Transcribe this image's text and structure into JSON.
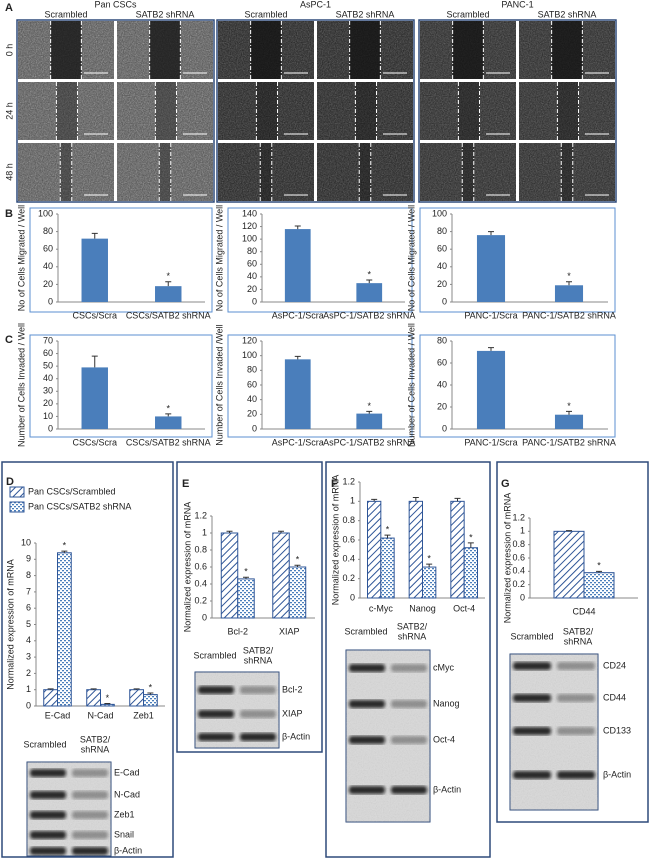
{
  "panel_labels": [
    "A",
    "B",
    "C",
    "D",
    "E",
    "F",
    "G"
  ],
  "panel_a": {
    "groups": [
      {
        "title": "Pan CSCs",
        "conditions": [
          "Scrambled",
          "SATB2 shRNA"
        ]
      },
      {
        "title": "AsPC-1",
        "conditions": [
          "Scrambled",
          "SATB2 shRNA"
        ]
      },
      {
        "title": "PANC-1",
        "conditions": [
          "Scrambled",
          "SATB2 shRNA"
        ]
      }
    ],
    "times": [
      "0 h",
      "24 h",
      "48 h"
    ]
  },
  "chart_data": [
    {
      "type": "bar",
      "ylabel": "No of Cells Migrated / Well",
      "categories": [
        "CSCs/Scra",
        "CSCs/SATB2 shRNA"
      ],
      "values": [
        72,
        18
      ],
      "errors": [
        6,
        5
      ],
      "color": "#4a7ebb",
      "ylim": [
        0,
        100
      ],
      "yticks": [
        0,
        20,
        40,
        60,
        80,
        100
      ],
      "annotations": [
        {
          "text": "*",
          "index": 1
        }
      ]
    },
    {
      "type": "bar",
      "ylabel": "No of Cells Migrated / Well",
      "categories": [
        "AsPC-1/Scra",
        "AsPC-1/SATB2 shRNA"
      ],
      "values": [
        116,
        30
      ],
      "errors": [
        5,
        5
      ],
      "color": "#4a7ebb",
      "ylim": [
        0,
        140
      ],
      "yticks": [
        0,
        20,
        40,
        60,
        80,
        100,
        120,
        140
      ],
      "annotations": [
        {
          "text": "*",
          "index": 1
        }
      ]
    },
    {
      "type": "bar",
      "ylabel": "No of Cells Migrated / Well",
      "categories": [
        "PANC-1/Scra",
        "PANC-1/SATB2 shRNA"
      ],
      "values": [
        76,
        19
      ],
      "errors": [
        4,
        4
      ],
      "color": "#4a7ebb",
      "ylim": [
        0,
        100
      ],
      "yticks": [
        0,
        20,
        40,
        60,
        80,
        100
      ],
      "annotations": [
        {
          "text": "*",
          "index": 1
        }
      ]
    },
    {
      "type": "bar",
      "ylabel": "Number of Cells Invaded / Well",
      "categories": [
        "CSCs/Scra",
        "CSCs/SATB2 shRNA"
      ],
      "values": [
        49,
        10
      ],
      "errors": [
        9,
        2
      ],
      "color": "#4a7ebb",
      "ylim": [
        0,
        70
      ],
      "yticks": [
        0,
        10,
        20,
        30,
        40,
        50,
        60,
        70
      ],
      "annotations": [
        {
          "text": "*",
          "index": 1
        }
      ]
    },
    {
      "type": "bar",
      "ylabel": "Number of Cells Invaded /Well",
      "categories": [
        "AsPC-1/Scra",
        "AsPC-1/SATB2 shRNA"
      ],
      "values": [
        95,
        21
      ],
      "errors": [
        4,
        3
      ],
      "color": "#4a7ebb",
      "ylim": [
        0,
        120
      ],
      "yticks": [
        0,
        20,
        40,
        60,
        80,
        100,
        120
      ],
      "annotations": [
        {
          "text": "*",
          "index": 1
        }
      ]
    },
    {
      "type": "bar",
      "ylabel": "Number of Cells Invaded / Well",
      "categories": [
        "PANC-1/Scra",
        "PANC-1/SATB2 shRNA"
      ],
      "values": [
        71,
        13
      ],
      "errors": [
        3,
        3
      ],
      "color": "#4a7ebb",
      "ylim": [
        0,
        80
      ],
      "yticks": [
        0,
        20,
        40,
        60,
        80
      ],
      "annotations": [
        {
          "text": "*",
          "index": 1
        }
      ]
    },
    {
      "type": "bar",
      "ylabel": "Normalized expression of mRNA",
      "categories": [
        "E-Cad",
        "N-Cad",
        "Zeb1"
      ],
      "legend": "top",
      "series": [
        {
          "name": "Pan CSCs/Scrambled",
          "color": "#2e5597",
          "pattern": "diagonal",
          "values": [
            1,
            1,
            1
          ],
          "errors": [
            0.05,
            0.05,
            0.05
          ]
        },
        {
          "name": "Pan CSCs/SATB2 shRNA",
          "color": "#2e5597",
          "pattern": "dots",
          "values": [
            9.4,
            0.1,
            0.7
          ],
          "errors": [
            0.1,
            0.05,
            0.1
          ]
        }
      ],
      "ylim": [
        0,
        10
      ],
      "yticks": [
        0,
        1,
        2,
        3,
        4,
        5,
        6,
        7,
        8,
        9,
        10
      ],
      "annotations": [
        {
          "text": "*",
          "series": 1,
          "index": 0
        },
        {
          "text": "*",
          "series": 1,
          "index": 1
        },
        {
          "text": "*",
          "series": 1,
          "index": 2
        }
      ]
    },
    {
      "type": "bar",
      "ylabel": "Normalized expression of mRNA",
      "categories": [
        "Bcl-2",
        "XIAP"
      ],
      "series": [
        {
          "color": "#2e5597",
          "pattern": "diagonal",
          "values": [
            1,
            1
          ],
          "errors": [
            0.02,
            0.02
          ]
        },
        {
          "color": "#2e5597",
          "pattern": "dots",
          "values": [
            0.46,
            0.6
          ],
          "errors": [
            0.02,
            0.02
          ]
        }
      ],
      "ylim": [
        0,
        1.2
      ],
      "yticks": [
        0,
        0.2,
        0.4,
        0.6,
        0.8,
        1,
        1.2
      ],
      "annotations": [
        {
          "text": "*",
          "series": 1,
          "index": 0
        },
        {
          "text": "*",
          "series": 1,
          "index": 1
        }
      ]
    },
    {
      "type": "bar",
      "ylabel": "Normalized expression of mRNA",
      "categories": [
        "c-Myc",
        "Nanog",
        "Oct-4"
      ],
      "series": [
        {
          "color": "#2e5597",
          "pattern": "diagonal",
          "values": [
            1,
            1,
            1
          ],
          "errors": [
            0.02,
            0.04,
            0.03
          ]
        },
        {
          "color": "#2e5597",
          "pattern": "dots",
          "values": [
            0.62,
            0.32,
            0.52
          ],
          "errors": [
            0.03,
            0.03,
            0.05
          ]
        }
      ],
      "ylim": [
        0,
        1.2
      ],
      "yticks": [
        0,
        0.2,
        0.4,
        0.6,
        0.8,
        1,
        1.2
      ],
      "annotations": [
        {
          "text": "*",
          "series": 1,
          "index": 0
        },
        {
          "text": "*",
          "series": 1,
          "index": 1
        },
        {
          "text": "*",
          "series": 1,
          "index": 2
        }
      ]
    },
    {
      "type": "bar",
      "ylabel": "Normalized expression of mRNA",
      "categories": [
        "CD44"
      ],
      "series": [
        {
          "color": "#2e5597",
          "pattern": "diagonal",
          "values": [
            1
          ],
          "errors": [
            0.01
          ]
        },
        {
          "color": "#2e5597",
          "pattern": "dots",
          "values": [
            0.38
          ],
          "errors": [
            0.02
          ]
        }
      ],
      "ylim": [
        0,
        1.2
      ],
      "yticks": [
        0,
        0.2,
        0.4,
        0.6,
        0.8,
        1,
        1.2
      ],
      "annotations": [
        {
          "text": "*",
          "series": 1,
          "index": 0
        }
      ]
    }
  ],
  "blots": [
    {
      "columns": [
        {
          "lines": [
            "Scrambled"
          ]
        },
        {
          "lines": [
            "SATB2/",
            "shRNA"
          ]
        }
      ],
      "bands": [
        "E-Cad",
        "N-Cad",
        "Zeb1",
        "Snail",
        "β-Actin"
      ]
    },
    {
      "columns": [
        {
          "lines": [
            "Scrambled"
          ]
        },
        {
          "lines": [
            "SATB2/",
            "shRNA"
          ]
        }
      ],
      "bands": [
        "Bcl-2",
        "XIAP",
        "β-Actin"
      ]
    },
    {
      "columns": [
        {
          "lines": [
            "Scrambled"
          ]
        },
        {
          "lines": [
            "SATB2/",
            "shRNA"
          ]
        }
      ],
      "bands": [
        "cMyc",
        "Nanog",
        "Oct-4",
        "β-Actin"
      ]
    },
    {
      "columns": [
        {
          "lines": [
            "Scrambled"
          ]
        },
        {
          "lines": [
            "SATB2/",
            "shRNA"
          ]
        }
      ],
      "bands": [
        "CD24",
        "CD44",
        "CD133",
        "β-Actin"
      ]
    }
  ]
}
